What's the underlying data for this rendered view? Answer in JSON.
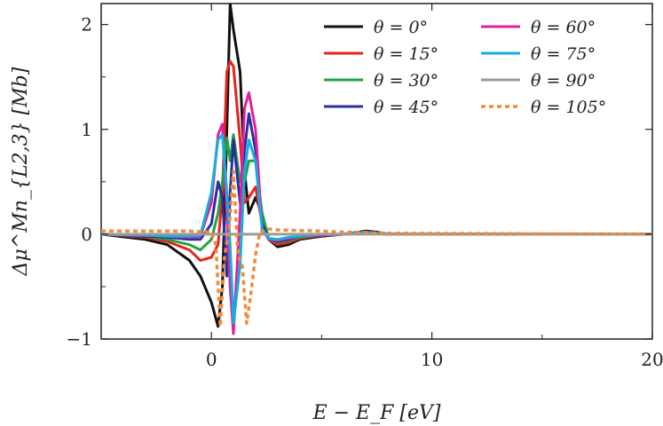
{
  "chart_data": {
    "type": "line",
    "title": "",
    "xlabel": "E − E_F [eV]",
    "ylabel": "Δμ^Mn_{L2,3} [Mb]",
    "xlim": [
      -5,
      20
    ],
    "ylim": [
      -1,
      2.2
    ],
    "xticks": [
      0,
      10,
      20
    ],
    "yticks": [
      -1,
      0,
      1,
      2
    ],
    "xtick_labels": [
      "0",
      "10",
      "20"
    ],
    "ytick_labels": [
      "−1",
      "0",
      "1",
      "2"
    ],
    "grid": false,
    "legend_position": "top-right",
    "series": [
      {
        "name": "θ = 0°",
        "color": "#111111",
        "dash": false,
        "x": [
          -5,
          -3,
          -2,
          -1,
          -0.5,
          0,
          0.3,
          0.5,
          0.7,
          0.85,
          1.0,
          1.3,
          1.5,
          1.7,
          2.0,
          2.3,
          2.6,
          3.0,
          3.5,
          4,
          5,
          6,
          7,
          7.5,
          8,
          10,
          20
        ],
        "y": [
          0,
          -0.05,
          -0.1,
          -0.25,
          -0.4,
          -0.65,
          -0.88,
          -0.5,
          1.0,
          2.2,
          1.95,
          1.55,
          0.6,
          0.2,
          0.35,
          0.2,
          -0.05,
          -0.12,
          -0.1,
          -0.05,
          -0.02,
          0,
          0.03,
          0.02,
          0,
          0,
          0
        ]
      },
      {
        "name": "θ = 15°",
        "color": "#e8231b",
        "dash": false,
        "x": [
          -5,
          -3,
          -2,
          -1,
          -0.5,
          0,
          0.3,
          0.5,
          0.7,
          0.85,
          1.0,
          1.3,
          1.5,
          1.7,
          2.0,
          2.3,
          2.6,
          3.0,
          3.5,
          4,
          5,
          6,
          7,
          7.5,
          8,
          10,
          20
        ],
        "y": [
          0,
          -0.03,
          -0.07,
          -0.15,
          -0.25,
          -0.22,
          -0.1,
          0.4,
          1.55,
          1.65,
          1.6,
          0.9,
          0.3,
          0.35,
          0.45,
          0.1,
          -0.05,
          -0.1,
          -0.08,
          -0.04,
          -0.01,
          0,
          0.02,
          0.01,
          0,
          0,
          0
        ]
      },
      {
        "name": "θ = 30°",
        "color": "#1fa33f",
        "dash": false,
        "x": [
          -5,
          -3,
          -2,
          -1,
          -0.5,
          0,
          0.3,
          0.5,
          0.7,
          0.85,
          1.0,
          1.3,
          1.5,
          1.7,
          2.0,
          2.3,
          2.6,
          3.0,
          3.5,
          4,
          5,
          6,
          7,
          7.5,
          8,
          10,
          20
        ],
        "y": [
          0,
          -0.02,
          -0.05,
          -0.1,
          -0.15,
          -0.05,
          0.2,
          0.5,
          0.92,
          0.7,
          0.95,
          0.5,
          0.5,
          0.7,
          0.7,
          0.2,
          -0.05,
          -0.08,
          -0.06,
          -0.03,
          -0.01,
          0,
          0.02,
          0.01,
          0,
          0,
          0
        ]
      },
      {
        "name": "θ = 45°",
        "color": "#2b2f9c",
        "dash": false,
        "x": [
          -5,
          -3,
          -2,
          -1,
          -0.5,
          0,
          0.3,
          0.5,
          0.7,
          0.85,
          1.0,
          1.3,
          1.5,
          1.7,
          2.0,
          2.3,
          2.6,
          3.0,
          3.5,
          4,
          5,
          6,
          7,
          7.5,
          8,
          10,
          20
        ],
        "y": [
          0,
          -0.02,
          -0.03,
          -0.05,
          -0.05,
          0.1,
          0.5,
          0.35,
          -0.4,
          0.4,
          0.9,
          0.3,
          0.8,
          1.15,
          0.8,
          0.1,
          -0.05,
          -0.07,
          -0.05,
          -0.02,
          -0.01,
          0,
          0.02,
          0.01,
          0,
          0,
          0
        ]
      },
      {
        "name": "θ = 60°",
        "color": "#e21f9b",
        "dash": false,
        "x": [
          -5,
          -3,
          -2,
          -1,
          -0.5,
          0,
          0.3,
          0.5,
          0.7,
          0.85,
          1.0,
          1.3,
          1.5,
          1.7,
          2.0,
          2.3,
          2.6,
          3.0,
          3.5,
          4,
          5,
          6,
          7,
          7.5,
          8,
          10,
          20
        ],
        "y": [
          0,
          -0.01,
          -0.02,
          -0.03,
          -0.02,
          0.3,
          0.95,
          1.05,
          0.2,
          -0.5,
          -0.95,
          0.2,
          1.2,
          1.35,
          1.0,
          0.05,
          -0.05,
          -0.06,
          -0.04,
          -0.02,
          -0.01,
          0,
          0.02,
          0.01,
          0,
          0,
          0
        ]
      },
      {
        "name": "θ = 75°",
        "color": "#14aee0",
        "dash": false,
        "x": [
          -5,
          -3,
          -2,
          -1,
          -0.5,
          0,
          0.3,
          0.5,
          0.7,
          0.85,
          1.0,
          1.3,
          1.5,
          1.7,
          2.0,
          2.3,
          2.6,
          3.0,
          3.5,
          4,
          5,
          6,
          7,
          7.5,
          8,
          10,
          20
        ],
        "y": [
          0,
          -0.01,
          -0.02,
          -0.02,
          -0.01,
          0.4,
          0.9,
          0.95,
          0.4,
          -0.1,
          -0.85,
          -0.3,
          0.6,
          0.9,
          0.7,
          0.05,
          -0.04,
          -0.05,
          -0.03,
          -0.02,
          0,
          0,
          0.02,
          0.01,
          0,
          0,
          0
        ]
      },
      {
        "name": "θ = 90°",
        "color": "#9a9a9a",
        "dash": false,
        "x": [
          -5,
          0,
          5,
          10,
          15,
          20
        ],
        "y": [
          0,
          0,
          0,
          0,
          0,
          0
        ]
      },
      {
        "name": "θ = 105°",
        "color": "#f08a3c",
        "dash": true,
        "x": [
          -5,
          -2,
          -1,
          0,
          0.2,
          0.4,
          0.6,
          0.8,
          1.0,
          1.2,
          1.4,
          1.6,
          1.8,
          2.0,
          2.2,
          2.6,
          3,
          5,
          6,
          8,
          20
        ],
        "y": [
          0.03,
          0.03,
          0.03,
          0.02,
          -0.1,
          -0.88,
          -0.2,
          0.05,
          0.6,
          -0.2,
          -0.3,
          -0.85,
          -0.55,
          -0.2,
          0.02,
          0.05,
          0.04,
          0.03,
          0.02,
          0.01,
          0
        ]
      }
    ]
  }
}
